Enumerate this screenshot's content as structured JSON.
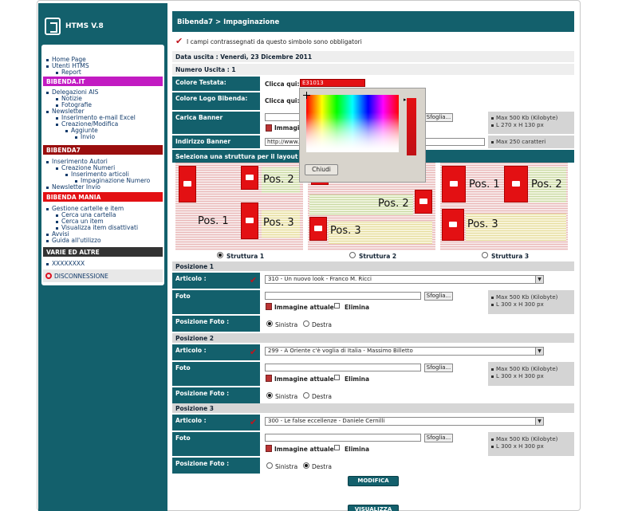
{
  "app": {
    "name": "HTMS V.8"
  },
  "sidebar": {
    "items_top": [
      {
        "label": "Home Page",
        "indent": 0
      },
      {
        "label": "Utenti HTMS",
        "indent": 0
      },
      {
        "label": "Report",
        "indent": 1
      }
    ],
    "sections": [
      {
        "title": "BIBENDA.IT",
        "color": "#c21bc2",
        "items": [
          {
            "label": "Delegazioni AIS",
            "indent": 0
          },
          {
            "label": "Notizie",
            "indent": 1
          },
          {
            "label": "Fotografie",
            "indent": 1
          },
          {
            "label": "Newsletter",
            "indent": 0
          },
          {
            "label": "Inserimento e-mail Excel",
            "indent": 1
          },
          {
            "label": "Creazione/Modifica",
            "indent": 1
          },
          {
            "label": "Aggiunte",
            "indent": 2
          },
          {
            "label": "Invio",
            "indent": 3
          }
        ]
      },
      {
        "title": "BIBENDA7",
        "color": "#9a0e0e",
        "items": [
          {
            "label": "Inserimento Autori",
            "indent": 0
          },
          {
            "label": "Creazione Numeri",
            "indent": 1
          },
          {
            "label": "Inserimento articoli",
            "indent": 2
          },
          {
            "label": "Impaginazione Numero",
            "indent": 3
          },
          {
            "label": "Newsletter Invio",
            "indent": 0
          }
        ]
      },
      {
        "title": "BIBENDA MANIA",
        "color": "#e31013",
        "items": [
          {
            "label": "Gestione cartelle e item",
            "indent": 0
          },
          {
            "label": "Cerca una cartella",
            "indent": 1
          },
          {
            "label": "Cerca un item",
            "indent": 1
          },
          {
            "label": "Visualizza item disattivati",
            "indent": 1
          },
          {
            "label": "Avvisi",
            "indent": 0
          },
          {
            "label": "Guida all'utilizzo",
            "indent": 0
          }
        ]
      },
      {
        "title": "VARIE ED ALTRE",
        "color": "#333333",
        "items": [
          {
            "label": "XXXXXXXX",
            "indent": 0
          }
        ]
      }
    ],
    "logout_label": "DISCONNESSIONE"
  },
  "header": {
    "breadcrumb": "Bibenda7 > Impaginazione"
  },
  "notice": "I campi contrassegnati da questo simbolo sono obbligatori",
  "issue": {
    "date_label": "Data uscita : Venerdì, 23 Dicembre 2011",
    "number_label": "Numero Uscita : 1"
  },
  "form": {
    "colore_testata": {
      "label": "Colore Testata:",
      "prompt": "Clicca qui:",
      "value": "E31013"
    },
    "colore_logo": {
      "label": "Colore Logo Bibenda:",
      "prompt": "Clicca qui:"
    },
    "carica_banner": {
      "label": "Carica Banner",
      "browse": "Sfoglia...",
      "current": "Immagine",
      "info": [
        "Max 500 Kb (Kilobyte)",
        "L 270 x H 130 px"
      ]
    },
    "indirizzo_banner": {
      "label": "Indirizzo Banner",
      "value": "http://www.",
      "info": [
        "Max 250 caratteri"
      ]
    },
    "layout_header": "Seleziona una struttura per il layout del",
    "structures": [
      "Struttura 1",
      "Struttura 2",
      "Struttura 3"
    ],
    "selected_structure": 0
  },
  "layout_labels": {
    "s1": [
      "Pos. 2",
      "Pos. 1",
      "Pos. 3"
    ],
    "s2": [
      "Pos. 2",
      "Pos. 3"
    ],
    "s3": [
      "Pos. 1",
      "Pos. 2",
      "Pos. 3"
    ]
  },
  "positions": [
    {
      "title": "Posizione 1",
      "article_label": "Articolo :",
      "article": "310 - Un nuovo look - Franco M. Ricci",
      "foto_label": "Foto",
      "browse": "Sfoglia...",
      "current": "Immagine attuale",
      "delete": "Elimina",
      "info": [
        "Max 500 Kb (Kilobyte)",
        "L 300 x H 300 px"
      ],
      "pos_label": "Posizione Foto :",
      "left": "Sinistra",
      "right": "Destra",
      "selected": "left"
    },
    {
      "title": "Posizione 2",
      "article_label": "Articolo :",
      "article": "299 - A Oriente c'è voglia di Italia - Massimo Billetto",
      "foto_label": "Foto",
      "browse": "Sfoglia...",
      "current": "Immagine attuale",
      "delete": "Elimina",
      "info": [
        "Max 500 Kb (Kilobyte)",
        "L 300 x H 300 px"
      ],
      "pos_label": "Posizione Foto :",
      "left": "Sinistra",
      "right": "Destra",
      "selected": "left"
    },
    {
      "title": "Posizione 3",
      "article_label": "Articolo :",
      "article": "300 - Le false eccellenze - Daniele Cernilli",
      "foto_label": "Foto",
      "browse": "Sfoglia...",
      "current": "Immagine attuale",
      "delete": "Elimina",
      "info": [
        "Max 500 Kb (Kilobyte)",
        "L 300 x H 300 px"
      ],
      "pos_label": "Posizione Foto :",
      "left": "Sinistra",
      "right": "Destra",
      "selected": "right"
    }
  ],
  "actions": {
    "modifica": "MODIFICA",
    "visualizza": "VISUALIZZA"
  },
  "picker": {
    "close": "Chiudi"
  }
}
